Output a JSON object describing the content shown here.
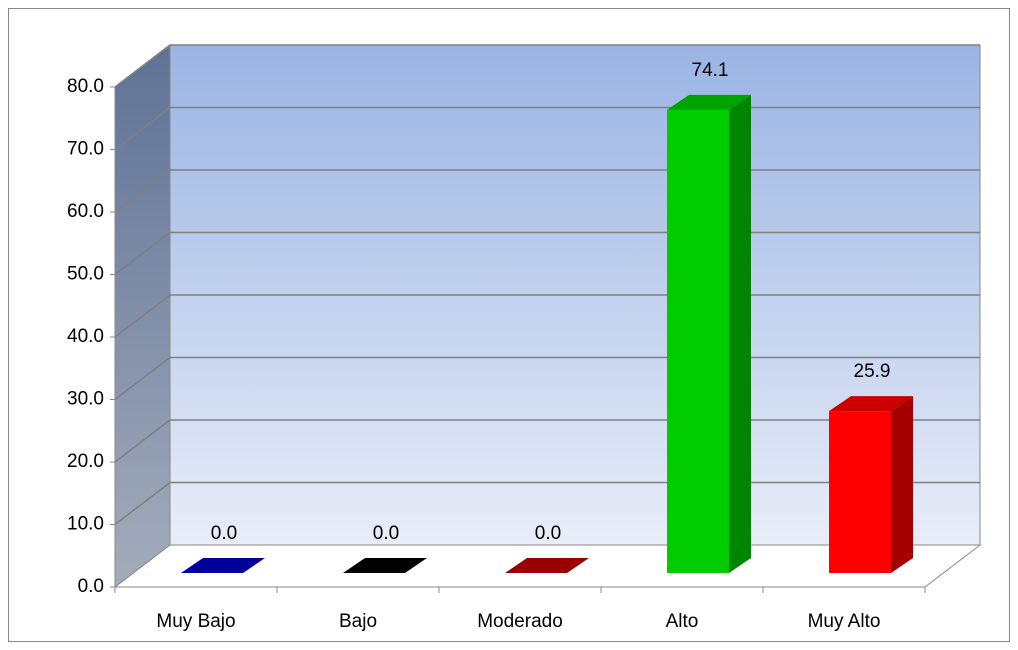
{
  "chart_data": {
    "type": "bar3d",
    "categories": [
      "Muy Bajo",
      "Bajo",
      "Moderado",
      "Alto",
      "Muy Alto"
    ],
    "values": [
      0,
      0,
      0,
      74.1,
      25.9
    ],
    "value_labels": [
      "0.0",
      "0.0",
      "0.0",
      "74.1",
      "25.9"
    ],
    "colors": [
      "#0000c0",
      "#000000",
      "#c00000",
      "#00cc00",
      "#ff0000"
    ],
    "ylim": [
      0,
      80
    ],
    "yticks": [
      {
        "value": 0,
        "label": "0.0"
      },
      {
        "value": 10,
        "label": "10.0"
      },
      {
        "value": 20,
        "label": "20.0"
      },
      {
        "value": 30,
        "label": "30.0"
      },
      {
        "value": 40,
        "label": "40.0"
      },
      {
        "value": 50,
        "label": "50.0"
      },
      {
        "value": 60,
        "label": "60.0"
      },
      {
        "value": 70,
        "label": "70.0"
      },
      {
        "value": 80,
        "label": "80.0"
      }
    ],
    "grid": true
  }
}
